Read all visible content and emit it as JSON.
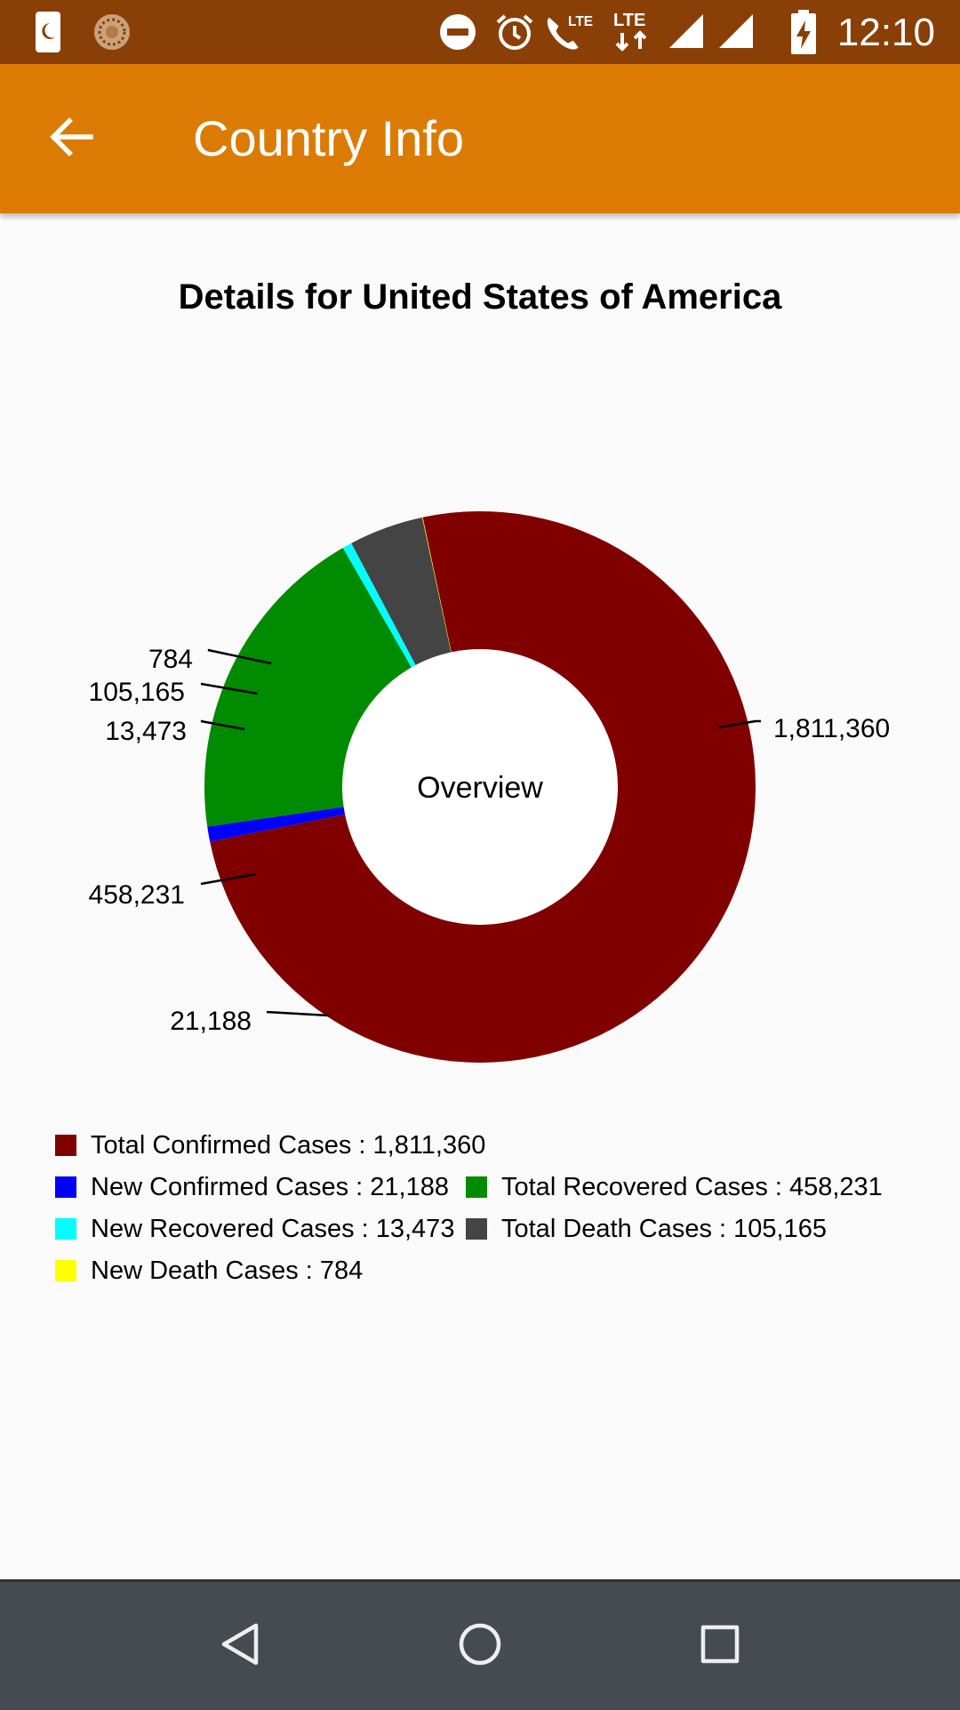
{
  "status_bar": {
    "time": "12:10",
    "icons": [
      "sim-card-moon-icon",
      "sunflower-app-icon",
      "do-not-disturb-icon",
      "alarm-icon",
      "lte-call-icon",
      "lte-data-icon",
      "signal-icon",
      "signal-icon-2",
      "battery-charging-icon"
    ]
  },
  "app_bar": {
    "title": "Country Info",
    "back_icon": "arrow-back-icon"
  },
  "heading": "Details for United States of America",
  "chart_data": {
    "type": "pie",
    "style": "donut",
    "center_text": "Overview",
    "slices": [
      {
        "label": "Total Confirmed Cases",
        "value": 1811360,
        "display": "1,811,360",
        "color": "#800000"
      },
      {
        "label": "New Confirmed Cases",
        "value": 21188,
        "display": "21,188",
        "color": "#0000FF"
      },
      {
        "label": "Total Recovered Cases",
        "value": 458231,
        "display": "458,231",
        "color": "#008B00"
      },
      {
        "label": "New Recovered Cases",
        "value": 13473,
        "display": "13,473",
        "color": "#00FFFF"
      },
      {
        "label": "Total Death Cases",
        "value": 105165,
        "display": "105,165",
        "color": "#444444"
      },
      {
        "label": "New Death Cases",
        "value": 784,
        "display": "784",
        "color": "#FFFF00"
      }
    ]
  },
  "legend": [
    {
      "text": "Total Confirmed Cases : 1,811,360",
      "color": "#800000"
    },
    {
      "text": "New Confirmed Cases : 21,188",
      "color": "#0000FF"
    },
    {
      "text": "Total Recovered Cases : 458,231",
      "color": "#008B00"
    },
    {
      "text": "New Recovered Cases : 13,473",
      "color": "#00FFFF"
    },
    {
      "text": "Total Death Cases : 105,165",
      "color": "#444444"
    },
    {
      "text": "New Death Cases : 784",
      "color": "#FFFF00"
    }
  ],
  "nav_bar": {
    "icons": [
      "back-triangle-icon",
      "home-circle-icon",
      "recents-square-icon"
    ]
  },
  "colors": {
    "status_bar": "#8A3F06",
    "app_bar": "#DB7B04",
    "background": "#FAFAFA",
    "nav_bar": "#454B50"
  }
}
